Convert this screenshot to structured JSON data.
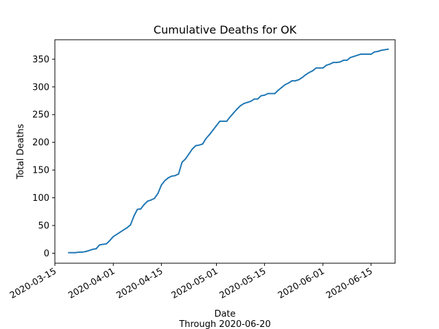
{
  "chart_data": {
    "type": "line",
    "title": "Cumulative Deaths for OK",
    "xlabel": "Date",
    "xlabel_sub": "Through 2020-06-20",
    "ylabel": "Total Deaths",
    "xlim": [
      "2020-03-15",
      "2020-06-22"
    ],
    "ylim": [
      -18,
      385
    ],
    "x_ticks": [
      "2020-03-15",
      "2020-04-01",
      "2020-04-15",
      "2020-05-01",
      "2020-05-15",
      "2020-06-01",
      "2020-06-15"
    ],
    "y_ticks": [
      0,
      50,
      100,
      150,
      200,
      250,
      300,
      350
    ],
    "grid": false,
    "color": "#1f77b4",
    "series": [
      {
        "name": "Cumulative Deaths",
        "x": [
          "2020-03-19",
          "2020-03-20",
          "2020-03-21",
          "2020-03-22",
          "2020-03-23",
          "2020-03-24",
          "2020-03-25",
          "2020-03-26",
          "2020-03-27",
          "2020-03-28",
          "2020-03-29",
          "2020-03-30",
          "2020-03-31",
          "2020-04-01",
          "2020-04-02",
          "2020-04-03",
          "2020-04-04",
          "2020-04-05",
          "2020-04-06",
          "2020-04-07",
          "2020-04-08",
          "2020-04-09",
          "2020-04-10",
          "2020-04-11",
          "2020-04-12",
          "2020-04-13",
          "2020-04-14",
          "2020-04-15",
          "2020-04-16",
          "2020-04-17",
          "2020-04-18",
          "2020-04-19",
          "2020-04-20",
          "2020-04-21",
          "2020-04-22",
          "2020-04-23",
          "2020-04-24",
          "2020-04-25",
          "2020-04-26",
          "2020-04-27",
          "2020-04-28",
          "2020-04-29",
          "2020-04-30",
          "2020-05-01",
          "2020-05-02",
          "2020-05-03",
          "2020-05-04",
          "2020-05-05",
          "2020-05-06",
          "2020-05-07",
          "2020-05-08",
          "2020-05-09",
          "2020-05-10",
          "2020-05-11",
          "2020-05-12",
          "2020-05-13",
          "2020-05-14",
          "2020-05-15",
          "2020-05-16",
          "2020-05-17",
          "2020-05-18",
          "2020-05-19",
          "2020-05-20",
          "2020-05-21",
          "2020-05-22",
          "2020-05-23",
          "2020-05-24",
          "2020-05-25",
          "2020-05-26",
          "2020-05-27",
          "2020-05-28",
          "2020-05-29",
          "2020-05-30",
          "2020-05-31",
          "2020-06-01",
          "2020-06-02",
          "2020-06-03",
          "2020-06-04",
          "2020-06-05",
          "2020-06-06",
          "2020-06-07",
          "2020-06-08",
          "2020-06-09",
          "2020-06-10",
          "2020-06-11",
          "2020-06-12",
          "2020-06-13",
          "2020-06-14",
          "2020-06-15",
          "2020-06-16",
          "2020-06-17",
          "2020-06-18",
          "2020-06-19",
          "2020-06-20"
        ],
        "values": [
          1,
          1,
          1,
          2,
          2,
          3,
          5,
          7,
          8,
          15,
          16,
          17,
          23,
          30,
          34,
          38,
          42,
          46,
          51,
          67,
          79,
          80,
          88,
          94,
          96,
          99,
          108,
          123,
          131,
          136,
          139,
          140,
          143,
          164,
          170,
          179,
          188,
          194,
          195,
          197,
          207,
          214,
          222,
          230,
          238,
          238,
          238,
          246,
          253,
          260,
          266,
          270,
          272,
          274,
          278,
          278,
          284,
          285,
          288,
          288,
          288,
          294,
          299,
          304,
          307,
          311,
          311,
          313,
          317,
          322,
          326,
          329,
          334,
          334,
          334,
          339,
          341,
          344,
          344,
          345,
          348,
          348,
          353,
          355,
          357,
          359,
          359,
          359,
          359,
          363,
          364,
          366,
          367,
          368
        ]
      }
    ]
  }
}
